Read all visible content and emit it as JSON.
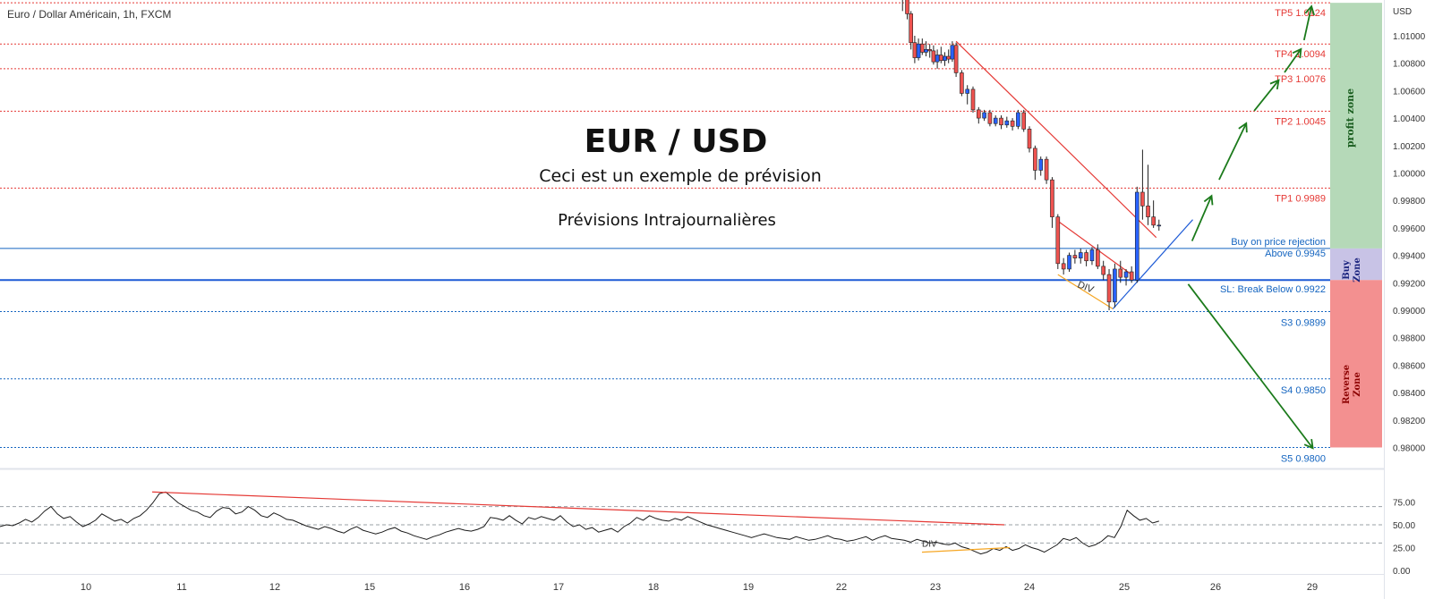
{
  "header": {
    "symbol_title": "Euro / Dollar Américain, 1h, FXCM"
  },
  "overlay": {
    "main_title": "EUR / USD",
    "subtitle": "Ceci est un exemple de prévision",
    "caption": "Prévisions Intrajournalières"
  },
  "zones": {
    "profit": {
      "label": "profit zone",
      "color": "#b5d9b8"
    },
    "buy": {
      "label_line1": "Buy",
      "label_line2": "Zone",
      "color": "#c8c3e6"
    },
    "reverse": {
      "label_line1": "Reverse",
      "label_line2": "Zone",
      "color": "#f39090"
    }
  },
  "colors": {
    "bull": "#2962ff",
    "bear": "#ef5350",
    "wick": "#222222",
    "tp": "#e53935",
    "support": "#1565c0",
    "arrow": "#1b7a1b",
    "trend_red": "#e53935",
    "trend_orange": "#f6a623",
    "trend_blue": "#1e5bd6"
  },
  "chart_data": {
    "type": "candlestick",
    "price_axis": {
      "unit": "USD",
      "range": [
        0.98,
        1.0124
      ],
      "ticks": [
        "1.01000",
        "1.00800",
        "1.00600",
        "1.00400",
        "1.00200",
        "1.00000",
        "0.99800",
        "0.99600",
        "0.99400",
        "0.99200",
        "0.99000",
        "0.98800",
        "0.98600",
        "0.98400",
        "0.98200",
        "0.98000"
      ]
    },
    "time_axis": {
      "ticks": [
        "10",
        "11",
        "12",
        "15",
        "16",
        "17",
        "18",
        "19",
        "22",
        "23",
        "24",
        "25",
        "26",
        "29"
      ]
    },
    "levels": [
      {
        "label": "TP5 1.0124",
        "value": 1.0124,
        "kind": "tp"
      },
      {
        "label": "TP4 1.0094",
        "value": 1.0094,
        "kind": "tp"
      },
      {
        "label": "TP3 1.0076",
        "value": 1.0076,
        "kind": "tp"
      },
      {
        "label": "TP2 1.0045",
        "value": 1.0045,
        "kind": "tp"
      },
      {
        "label": "TP1 0.9989",
        "value": 0.9989,
        "kind": "tp"
      },
      {
        "label": "Buy on price rejection",
        "label2": "Above 0.9945",
        "value": 0.9945,
        "kind": "entry"
      },
      {
        "label": "SL: Break Below 0.9922",
        "value": 0.9922,
        "kind": "stop"
      },
      {
        "label": "S3 0.9899",
        "value": 0.9899,
        "kind": "support"
      },
      {
        "label": "S4 0.9850",
        "value": 0.985,
        "kind": "support"
      },
      {
        "label": "S5 0.9800",
        "value": 0.98,
        "kind": "support"
      }
    ],
    "candles": [
      [
        18.65,
        1.0134,
        1.0136,
        1.0118,
        1.013
      ],
      [
        18.7,
        1.013,
        1.0132,
        1.0112,
        1.0116
      ],
      [
        18.74,
        1.0116,
        1.0118,
        1.009,
        1.0095
      ],
      [
        18.78,
        1.0095,
        1.01,
        1.008,
        1.0084
      ],
      [
        18.82,
        1.0084,
        1.0098,
        1.0082,
        1.0094
      ],
      [
        18.86,
        1.0094,
        1.0098,
        1.0086,
        1.0088
      ],
      [
        18.9,
        1.0088,
        1.0096,
        1.0085,
        1.009
      ],
      [
        18.94,
        1.009,
        1.0094,
        1.0084,
        1.0089
      ],
      [
        18.98,
        1.0089,
        1.0093,
        1.0079,
        1.0081
      ],
      [
        19.02,
        1.0081,
        1.009,
        1.0076,
        1.0086
      ],
      [
        19.06,
        1.0086,
        1.0092,
        1.008,
        1.0082
      ],
      [
        19.1,
        1.0082,
        1.0088,
        1.0078,
        1.0085
      ],
      [
        19.14,
        1.0085,
        1.009,
        1.008,
        1.0083
      ],
      [
        19.18,
        1.0083,
        1.0096,
        1.0081,
        1.0093
      ],
      [
        19.22,
        1.0093,
        1.0095,
        1.007,
        1.0073
      ],
      [
        19.28,
        1.0073,
        1.0075,
        1.0056,
        1.0058
      ],
      [
        19.34,
        1.0058,
        1.0064,
        1.005,
        1.0061
      ],
      [
        19.4,
        1.0061,
        1.0063,
        1.0044,
        1.0046
      ],
      [
        19.46,
        1.0046,
        1.0048,
        1.0036,
        1.004
      ],
      [
        19.52,
        1.004,
        1.0046,
        1.0038,
        1.0044
      ],
      [
        19.58,
        1.0044,
        1.0046,
        1.0034,
        1.0036
      ],
      [
        19.64,
        1.0036,
        1.0042,
        1.0034,
        1.004
      ],
      [
        19.7,
        1.004,
        1.0042,
        1.0032,
        1.0035
      ],
      [
        19.76,
        1.0035,
        1.0041,
        1.0033,
        1.0038
      ],
      [
        19.82,
        1.0038,
        1.004,
        1.0031,
        1.0034
      ],
      [
        19.88,
        1.0034,
        1.0046,
        1.0032,
        1.0044
      ],
      [
        19.94,
        1.0044,
        1.0046,
        1.003,
        1.0032
      ],
      [
        20.0,
        1.0032,
        1.0034,
        1.0015,
        1.0018
      ],
      [
        20.06,
        1.0018,
        1.002,
        0.9995,
        1.0002
      ],
      [
        20.12,
        1.0002,
        1.0012,
        0.9998,
        1.001
      ],
      [
        20.18,
        1.001,
        1.0012,
        0.9992,
        0.9995
      ],
      [
        20.24,
        0.9995,
        0.9997,
        0.996,
        0.9968
      ],
      [
        20.3,
        0.9968,
        0.997,
        0.993,
        0.9934
      ],
      [
        20.36,
        0.9934,
        0.9938,
        0.9926,
        0.993
      ],
      [
        20.42,
        0.993,
        0.9942,
        0.9928,
        0.994
      ],
      [
        20.48,
        0.994,
        0.9944,
        0.9934,
        0.9938
      ],
      [
        20.54,
        0.9938,
        0.9945,
        0.9934,
        0.9942
      ],
      [
        20.6,
        0.9942,
        0.9944,
        0.9932,
        0.9936
      ],
      [
        20.66,
        0.9936,
        0.9946,
        0.9933,
        0.9944
      ],
      [
        20.72,
        0.9944,
        0.9948,
        0.993,
        0.9932
      ],
      [
        20.78,
        0.9932,
        0.9936,
        0.9922,
        0.9926
      ],
      [
        20.84,
        0.9926,
        0.993,
        0.99,
        0.9906
      ],
      [
        20.9,
        0.9906,
        0.9934,
        0.9902,
        0.993
      ],
      [
        20.96,
        0.993,
        0.9936,
        0.992,
        0.9924
      ],
      [
        21.02,
        0.9924,
        0.993,
        0.9918,
        0.9928
      ],
      [
        21.08,
        0.9928,
        0.9932,
        0.992,
        0.9922
      ],
      [
        21.14,
        0.9922,
        0.999,
        0.992,
        0.9986
      ],
      [
        21.2,
        0.9986,
        1.0017,
        0.9966,
        0.9976
      ],
      [
        21.26,
        0.9976,
        1.0006,
        0.9962,
        0.9968
      ],
      [
        21.32,
        0.9968,
        0.998,
        0.996,
        0.9962
      ],
      [
        21.38,
        0.9962,
        0.9966,
        0.9958,
        0.9962
      ]
    ],
    "projection_waypoints": [
      [
        21.7,
        0.9944
      ],
      [
        21.98,
        0.9987
      ],
      [
        22.35,
        1.0041
      ],
      [
        22.68,
        1.007
      ],
      [
        22.9,
        1.0092
      ],
      [
        23.15,
        1.0124
      ]
    ],
    "reverse_projection": [
      [
        21.7,
        0.9919
      ],
      [
        23.15,
        0.98
      ]
    ],
    "divergence_label": "DIV",
    "rsi": {
      "ticks": [
        "75.00",
        "50.00",
        "25.00",
        "0.00"
      ],
      "levels": [
        70,
        50,
        30
      ],
      "divergence_label": "DIV",
      "values": [
        48,
        50,
        49,
        52,
        56,
        53,
        58,
        65,
        70,
        62,
        57,
        59,
        53,
        48,
        51,
        55,
        62,
        58,
        54,
        56,
        52,
        57,
        60,
        66,
        74,
        84,
        86,
        80,
        74,
        70,
        66,
        64,
        60,
        58,
        65,
        69,
        68,
        62,
        64,
        70,
        66,
        60,
        58,
        63,
        60,
        56,
        55,
        52,
        49,
        47,
        45,
        48,
        46,
        43,
        41,
        45,
        48,
        44,
        42,
        40,
        42,
        45,
        47,
        43,
        41,
        38,
        36,
        34,
        37,
        39,
        42,
        44,
        46,
        44,
        43,
        45,
        48,
        58,
        57,
        55,
        60,
        55,
        51,
        58,
        56,
        59,
        57,
        55,
        60,
        53,
        48,
        50,
        45,
        47,
        42,
        44,
        46,
        42,
        48,
        52,
        58,
        55,
        60,
        57,
        55,
        54,
        57,
        55,
        59,
        56,
        53,
        50,
        48,
        46,
        44,
        42,
        40,
        38,
        36,
        38,
        40,
        38,
        36,
        35,
        34,
        37,
        35,
        33,
        34,
        36,
        38,
        35,
        34,
        32,
        33,
        35,
        37,
        33,
        36,
        38,
        35,
        34,
        33,
        31,
        34,
        32,
        30,
        31,
        29,
        28,
        30,
        26,
        24,
        21,
        18,
        20,
        24,
        22,
        26,
        22,
        24,
        28,
        25,
        23,
        20,
        24,
        28,
        35,
        33,
        36,
        30,
        26,
        28,
        32,
        38,
        36,
        48,
        66,
        60,
        55,
        57,
        52,
        54
      ]
    }
  }
}
